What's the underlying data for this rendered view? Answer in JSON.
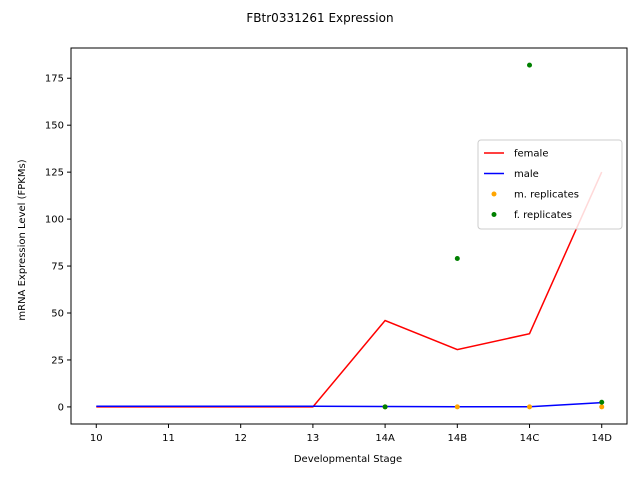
{
  "chart_data": {
    "type": "line",
    "title": "FBtr0331261 Expression",
    "xlabel": "Developmental Stage",
    "ylabel": "mRNA Expression Level (FPKMs)",
    "categories": [
      "10",
      "11",
      "12",
      "13",
      "14A",
      "14B",
      "14C",
      "14D"
    ],
    "ylim": [
      -9.1,
      191.1
    ],
    "yticks": [
      0,
      25,
      50,
      75,
      100,
      125,
      150,
      175
    ],
    "grid": false,
    "legend_position": "center-right",
    "series": [
      {
        "name": "female",
        "kind": "line",
        "color": "#ff0000",
        "values": [
          0,
          0,
          0,
          0,
          46,
          30.5,
          39,
          125
        ]
      },
      {
        "name": "male",
        "kind": "line",
        "color": "#0000ff",
        "values": [
          0.3,
          0.3,
          0.3,
          0.3,
          0.2,
          0.1,
          0.1,
          2.3
        ]
      },
      {
        "name": "m. replicates",
        "kind": "scatter",
        "color": "#ffa500",
        "points": [
          [
            "14A",
            0
          ],
          [
            "14B",
            0
          ],
          [
            "14C",
            0
          ],
          [
            "14D",
            0
          ]
        ]
      },
      {
        "name": "f. replicates",
        "kind": "scatter",
        "color": "#008000",
        "points": [
          [
            "14A",
            0
          ],
          [
            "14B",
            79
          ],
          [
            "14C",
            182
          ],
          [
            "14D",
            2.5
          ]
        ]
      }
    ]
  }
}
